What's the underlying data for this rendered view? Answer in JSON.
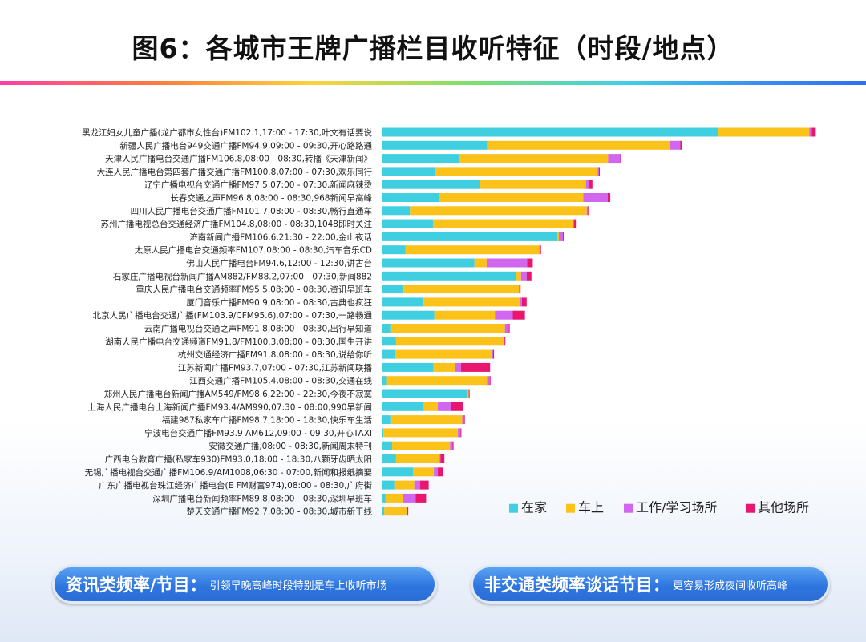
{
  "title": "图6：各城市王牌广播栏目收听特征（时段/地点）",
  "colors": {
    "home": "#3fcfe0",
    "car": "#fbc21a",
    "work": "#d166ef",
    "other": "#e8166e"
  },
  "chart_data": {
    "type": "bar",
    "orientation": "horizontal",
    "stacked": true,
    "xlim": [
      0,
      100
    ],
    "legend_position": "bottom-right",
    "categories": [
      "黑龙江妇女儿童广播(龙广都市女性台)FM102.1,17:00 - 17:30,叶文有话要说",
      "新疆人民广播电台949交通广播FM94.9,09:00 - 09:30,开心路路通",
      "天津人民广播电台交通广播FM106.8,08:00 - 08:30,转播《天津新闻》",
      "大连人民广播电台第四套广播交通广播FM100.8,07:00 - 07:30,欢乐同行",
      "辽宁广播电视台交通广播FM97.5,07:00 - 07:30,新闻麻辣烫",
      "长春交通之声FM96.8,08:00 - 08:30,968新闻早高峰",
      "四川人民广播电台交通广播FM101.7,08:00 - 08:30,畅行直通车",
      "苏州广播电视总台交通经济广播FM104.8,08:00 - 08:30,1048即时关注",
      "济南新闻广播FM106.6,21:30 - 22:00,金山夜话",
      "太原人民广播电台交通频率FM107,08:00 - 08:30,汽车音乐CD",
      "佛山人民广播电台FM94.6,12:00 - 12:30,讲古台",
      "石家庄广播电视台新闻广播AM882/FM88.2,07:00 - 07:30,新闻882",
      "重庆人民广播电台交通频率FM95.5,08:00 - 08:30,资讯早班车",
      "厦门音乐广播FM90.9,08:00 - 08:30,古典也疯狂",
      "北京人民广播电台交通广播(FM103.9/CFM95.6),07:00 - 07:30,一路畅通",
      "云南广播电视台交通之声FM91.8,08:00 - 08:30,出行早知道",
      "湖南人民广播电台交通频道FM91.8/FM100.3,08:00 - 08:30,国生开讲",
      "杭州交通经济广播FM91.8,08:00 - 08:30,说给你听",
      "江苏新闻广播FM93.7,07:00 - 07:30,江苏新闻联播",
      "江西交通广播FM105.4,08:00 - 08:30,交通在线",
      "郑州人民广播电台新闻广播AM549/FM98.6,22:00 - 22:30,今夜不寂寞",
      "上海人民广播电台上海新闻广播FM93.4/AM990,07:30 - 08:00,990早新闻",
      "福建987私家车广播FM98.7,18:00 - 18:30,快乐车生活",
      "宁波电台交通广播FM93.9 AM612,09:00 - 09:30,开心TAXI",
      "安徽交通广播,08:00 - 08:30,新闻周末特刊",
      "广西电台教育广播(私家车930)FM93.0,18:00 - 18:30,八颗牙齿晒太阳",
      "无锡广播电视台交通广播FM106.9/AM1008,06:30 - 07:00,新闻和报纸摘要",
      "广东广播电视台珠江经济广播电台(E FM财富974),08:00 - 08:30,广府街",
      "深圳广播电台新闻频率FM89.8,08:00 - 08:30,深圳早班车",
      "楚天交通广播FM92.7,08:00 - 08:30,城市新干线"
    ],
    "series": [
      {
        "name": "在家",
        "values": [
          77.3,
          24.2,
          17.8,
          12.3,
          22.6,
          13.1,
          6.5,
          11.8,
          40.4,
          5.5,
          21.3,
          30.9,
          5.0,
          9.6,
          12.1,
          2.0,
          3.3,
          3.0,
          11.9,
          1.2,
          19.7,
          9.4,
          2.0,
          0.4,
          2.4,
          3.3,
          7.2,
          2.9,
          0.9,
          0.6
        ]
      },
      {
        "name": "车上",
        "values": [
          20.9,
          42.0,
          34.2,
          37.3,
          24.3,
          33.2,
          40.6,
          32.1,
          0.3,
          30.7,
          2.8,
          1.1,
          26.5,
          22.2,
          13.9,
          26.3,
          24.7,
          22.4,
          5.0,
          23.0,
          0.3,
          3.5,
          16.5,
          17.1,
          13.3,
          10.0,
          4.8,
          4.6,
          3.9,
          5.1
        ]
      },
      {
        "name": "工作/学习场所",
        "values": [
          0.6,
          2.4,
          2.8,
          0.3,
          0.6,
          5.6,
          0.3,
          0.3,
          0.9,
          0.2,
          9.3,
          1.3,
          0.2,
          0.4,
          4.1,
          0.9,
          0.2,
          0.2,
          1.3,
          0.6,
          0,
          3.0,
          0.4,
          0.6,
          0.6,
          0.2,
          0.9,
          1.3,
          3.0,
          0.2
        ]
      },
      {
        "name": "其他场所",
        "values": [
          0.9,
          0.4,
          0.2,
          0.2,
          0.9,
          0.6,
          0.2,
          0.4,
          0.2,
          0.2,
          1.3,
          1.1,
          0.2,
          1.1,
          2.8,
          0.2,
          0.2,
          0.2,
          6.7,
          0.2,
          0.2,
          2.8,
          0.2,
          0.2,
          0.2,
          0.9,
          1.1,
          2.0,
          2.4,
          0.2
        ]
      }
    ]
  },
  "callouts": [
    {
      "heading": "资讯类频率/节目：",
      "text": "引领早晚高峰时段特别是车上收听市场"
    },
    {
      "heading": "非交通类频率谈话节目：",
      "text": "更容易形成夜间收听高峰"
    }
  ]
}
